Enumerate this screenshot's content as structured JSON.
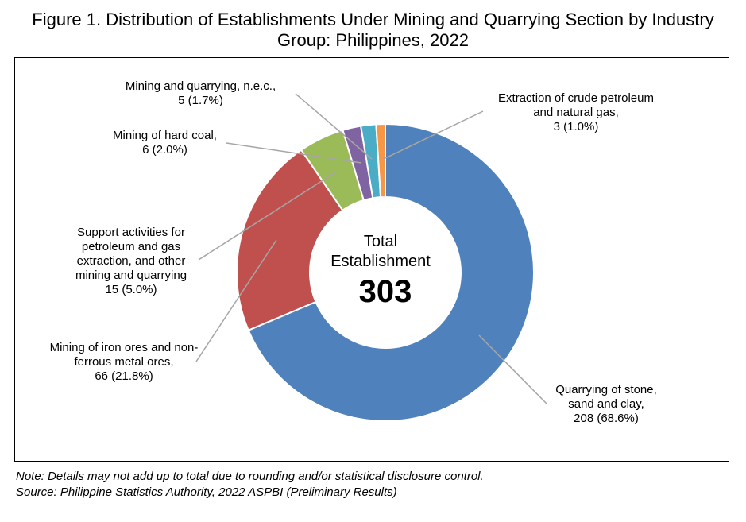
{
  "chart_data": {
    "type": "donut",
    "title": "Figure 1. Distribution of Establishments Under Mining and Quarrying Section by Industry Group: Philippines, 2022",
    "center_label": "Total Establishment",
    "total": 303,
    "categories": [
      "Quarrying of stone, sand and clay,",
      "Mining of iron ores and non-ferrous metal ores,",
      "Support activities for petroleum and gas extraction, and other mining and quarrying",
      "Mining of hard coal,",
      "Mining and quarrying, n.e.c.,",
      "Extraction of crude petroleum and natural gas,"
    ],
    "values": [
      208,
      66,
      15,
      6,
      5,
      3
    ],
    "value_labels": [
      "208 (68.6%)",
      "66 (21.8%)",
      "15 (5.0%)",
      "6 (2.0%)",
      "5 (1.7%)",
      "3 (1.0%)"
    ],
    "colors": [
      "#4f81bd",
      "#c0504d",
      "#9bbb59",
      "#8064a2",
      "#4bacc6",
      "#f79646"
    ],
    "note": "Note: Details may not add up to total due to rounding and/or statistical disclosure control.",
    "source": "Source: Philippine Statistics Authority, 2022 ASPBI (Preliminary Results)"
  }
}
